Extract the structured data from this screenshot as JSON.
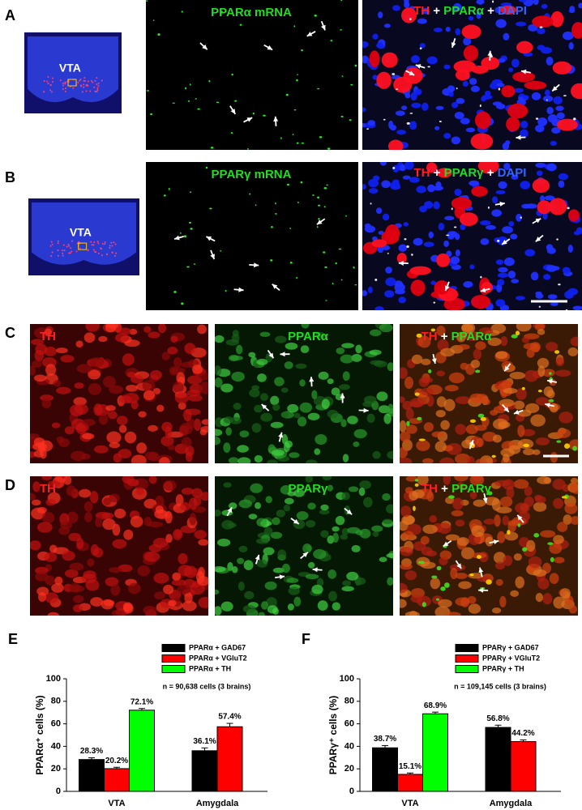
{
  "panels": [
    {
      "letter": "A",
      "region": "VTA",
      "labels": [
        [
          "PPARα mRNA"
        ],
        [
          "TH",
          "+",
          "PPARα",
          "+",
          "DAPI"
        ]
      ]
    },
    {
      "letter": "B",
      "region": "VTA",
      "labels": [
        [
          "PPARγ mRNA"
        ],
        [
          "TH",
          "+",
          "PPARγ",
          "+",
          "DAPI"
        ]
      ]
    },
    {
      "letter": "C",
      "labels": [
        [
          "TH"
        ],
        [
          "PPARα"
        ],
        [
          "TH",
          "+",
          "PPARα"
        ]
      ]
    },
    {
      "letter": "D",
      "labels": [
        [
          "TH"
        ],
        [
          "PPARγ"
        ],
        [
          "TH",
          "+",
          "PPARγ"
        ]
      ]
    }
  ],
  "chart_data": [
    {
      "type": "bar",
      "panel_label": "E",
      "ylabel": "PPARα⁺ cells (%)",
      "annotation": "n = 90,638 cells (3 brains)",
      "categories": [
        "VTA",
        "Amygdala"
      ],
      "ylim": [
        0,
        100
      ],
      "yticks": [
        0,
        20,
        40,
        60,
        80,
        100
      ],
      "series": [
        {
          "name": "PPARα + GAD67",
          "color": "#000000",
          "values": [
            28.3,
            36.1
          ],
          "errors": [
            1.5,
            2.5
          ],
          "value_labels": [
            "28.3%",
            "36.1%"
          ]
        },
        {
          "name": "PPARα + VGluT2",
          "color": "#ff0000",
          "values": [
            20.2,
            57.4
          ],
          "errors": [
            1.2,
            3
          ],
          "value_labels": [
            "20.2%",
            "57.4%"
          ]
        },
        {
          "name": "PPARα + TH",
          "color": "#00ff00",
          "values": [
            72.1,
            null
          ],
          "errors": [
            1.5,
            null
          ],
          "value_labels": [
            "72.1%",
            null
          ]
        }
      ]
    },
    {
      "type": "bar",
      "panel_label": "F",
      "ylabel": "PPARγ⁺ cells (%)",
      "annotation": "n = 109,145 cells (3 brains)",
      "categories": [
        "VTA",
        "Amygdala"
      ],
      "ylim": [
        0,
        100
      ],
      "yticks": [
        0,
        20,
        40,
        60,
        80,
        100
      ],
      "series": [
        {
          "name": "PPARγ + GAD67",
          "color": "#000000",
          "values": [
            38.7,
            56.8
          ],
          "errors": [
            2,
            2
          ],
          "value_labels": [
            "38.7%",
            "56.8%"
          ]
        },
        {
          "name": "PPARγ + VGluT2",
          "color": "#ff0000",
          "values": [
            15.1,
            44.2
          ],
          "errors": [
            1.2,
            1.5
          ],
          "value_labels": [
            "15.1%",
            "44.2%"
          ]
        },
        {
          "name": "PPARγ + TH",
          "color": "#00ff00",
          "values": [
            68.9,
            null
          ],
          "errors": [
            1.5,
            null
          ],
          "value_labels": [
            "68.9%",
            null
          ]
        }
      ]
    }
  ]
}
